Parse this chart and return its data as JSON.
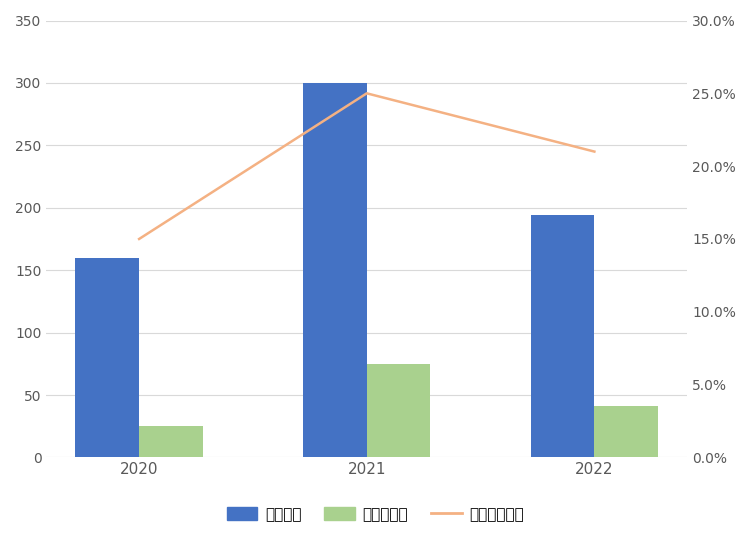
{
  "years": [
    "2020",
    "2021",
    "2022"
  ],
  "jianyan_pici": [
    160,
    300,
    194
  ],
  "buhege_pici": [
    25,
    75,
    41
  ],
  "buhege_lv": [
    0.15,
    0.25,
    0.21
  ],
  "bar_color_blue": "#4472C4",
  "bar_color_green": "#A9D18E",
  "line_color": "#F4B183",
  "left_ylim": [
    0,
    350
  ],
  "right_ylim": [
    0,
    0.3
  ],
  "left_yticks": [
    0,
    50,
    100,
    150,
    200,
    250,
    300,
    350
  ],
  "right_yticks": [
    0.0,
    0.05,
    0.1,
    0.15,
    0.2,
    0.25,
    0.3
  ],
  "legend_labels": [
    "检验批次",
    "不合格批次",
    "抽查不合格率"
  ],
  "background_color": "#ffffff",
  "grid_color": "#d9d9d9",
  "bar_width": 0.28
}
